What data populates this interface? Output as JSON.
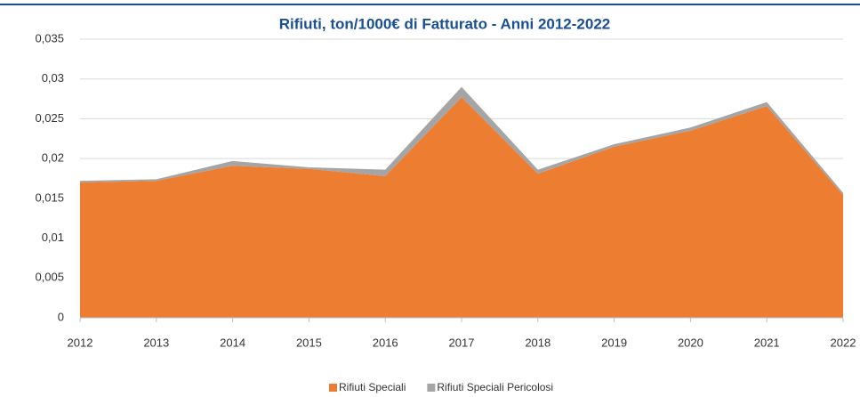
{
  "chart_data": {
    "type": "stacked_area",
    "title": "Rifiuti, ton/1000€ di Fatturato - Anni 2012-2022",
    "categories": [
      "2012",
      "2013",
      "2014",
      "2015",
      "2016",
      "2017",
      "2018",
      "2019",
      "2020",
      "2021",
      "2022"
    ],
    "series": [
      {
        "name": "Rifiuti Speciali",
        "color": "#ed7d31",
        "values": [
          0.017,
          0.0172,
          0.0191,
          0.0187,
          0.0178,
          0.0277,
          0.0181,
          0.0215,
          0.0235,
          0.0266,
          0.0154
        ]
      },
      {
        "name": "Rifiuti Speciali Pericolosi",
        "color": "#a5a5a5",
        "values": [
          0.0002,
          0.0002,
          0.0006,
          0.0002,
          0.0008,
          0.0013,
          0.0005,
          0.0003,
          0.0004,
          0.0005,
          0.0003
        ]
      }
    ],
    "ylim": [
      0,
      0.035
    ],
    "yticks": [
      0,
      {
        "value": 0.005,
        "label": "0,005"
      },
      {
        "value": 0.01,
        "label": "0,01"
      },
      {
        "value": 0.015,
        "label": "0,015"
      },
      {
        "value": 0.02,
        "label": "0,02"
      },
      {
        "value": 0.025,
        "label": "0,025"
      },
      {
        "value": 0.03,
        "label": "0,03"
      },
      {
        "value": 0.035,
        "label": "0,035"
      }
    ],
    "grid": true,
    "legend": "bottom"
  }
}
